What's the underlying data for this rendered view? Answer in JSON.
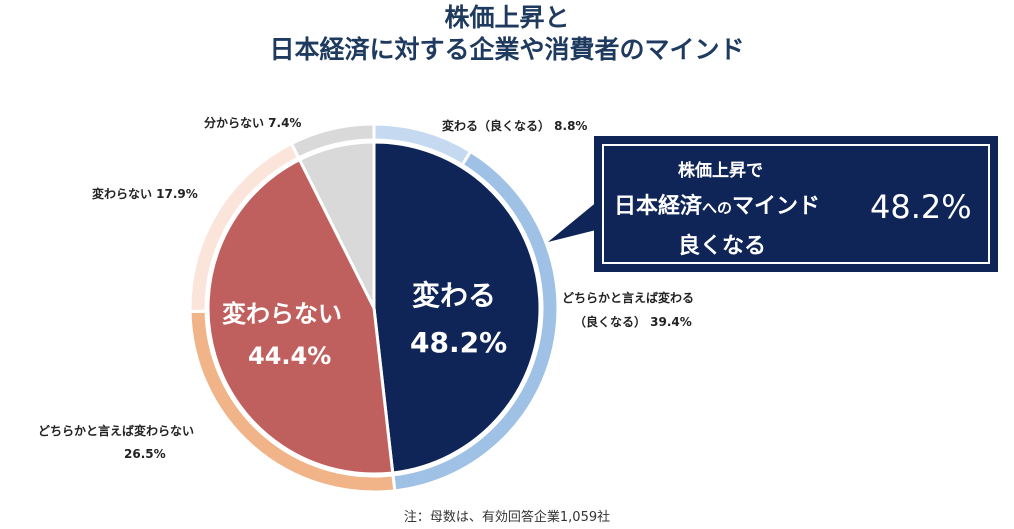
{
  "title": {
    "line1": "株価上昇と",
    "line2": "日本経済に対する企業や消費者のマインド"
  },
  "chart_data": {
    "type": "pie",
    "inner_slices": [
      {
        "label": "変わる",
        "value": 48.2,
        "value_text": "48.2%",
        "color": "#0f2557"
      },
      {
        "label": "変わらない",
        "value": 44.4,
        "value_text": "44.4%",
        "color": "#c0605e"
      },
      {
        "label": "分からない",
        "value": 7.4,
        "value_text": "7.4%",
        "color": "#d9d9d9"
      }
    ],
    "outer_slices": [
      {
        "label": "変わる（良くなる） 8.8%",
        "value": 8.8,
        "color": "#c5d9f0"
      },
      {
        "label": "どちらかと言えば変わる（良くなる） 39.4%",
        "value": 39.4,
        "color": "#9fc1e5"
      },
      {
        "label": "どちらかと言えば変わらない 26.5%",
        "value": 26.5,
        "color": "#f0b488"
      },
      {
        "label": "変わらない 17.9%",
        "value": 17.9,
        "color": "#fbe5da"
      },
      {
        "label": "分からない 7.4%",
        "value": 7.4,
        "color": "#d9d9d9"
      }
    ]
  },
  "labels": {
    "change_good": "変わる（良くなる） 8.8%",
    "rather_change_l1": "どちらかと言えば変わる",
    "rather_change_l2": "（良くなる） 39.4%",
    "rather_nochange_l1": "どちらかと言えば変わらない",
    "rather_nochange_l2": "26.5%",
    "nochange": "変わらない 17.9%",
    "unknown": "分からない 7.4%",
    "inner_change": "変わる",
    "inner_change_val": "48.2%",
    "inner_nochange": "変わらない",
    "inner_nochange_val": "44.4%"
  },
  "callout": {
    "line1": "株価上昇で",
    "line2a": "日本経済",
    "line2b": "への",
    "line2c": "マインド",
    "line3": "良くなる",
    "value": "48.2%"
  },
  "note": "注：母数は、有効回答企業1,059社"
}
